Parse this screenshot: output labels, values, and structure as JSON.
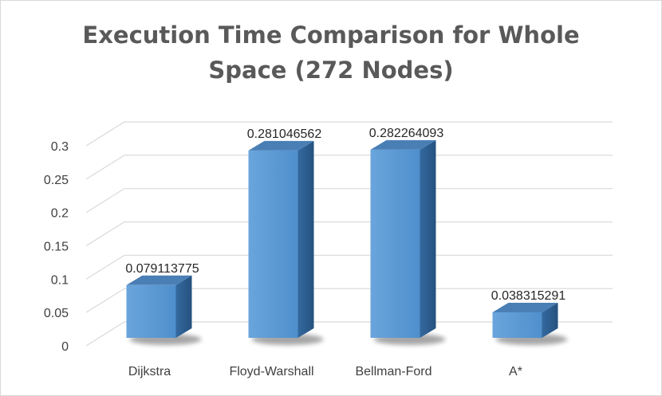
{
  "chart_data": {
    "type": "bar",
    "style": "3d-column",
    "title_lines": [
      "Execution Time Comparison for Whole",
      "Space (272 Nodes)"
    ],
    "categories": [
      "Dijkstra",
      "Floyd-Warshall",
      "Bellman-Ford",
      "A*"
    ],
    "values": [
      0.079113775,
      0.281046562,
      0.282264093,
      0.038315291
    ],
    "data_labels": [
      "0.079113775",
      "0.281046562",
      "0.282264093",
      "0.038315291"
    ],
    "ylim": [
      0,
      0.3
    ],
    "yticks": [
      0,
      0.05,
      0.1,
      0.15,
      0.2,
      0.25,
      0.3
    ],
    "ytick_labels": [
      "0",
      "0.05",
      "0.1",
      "0.15",
      "0.2",
      "0.25",
      "0.3"
    ],
    "grid": true,
    "legend": "none",
    "colors": {
      "bar_front": "#5b9bd5",
      "bar_front_light": "#7aaee0",
      "bar_side": "#2e5f90",
      "bar_top": "#4a7fb5",
      "grid": "#d9d9d9",
      "title": "#595959"
    }
  }
}
